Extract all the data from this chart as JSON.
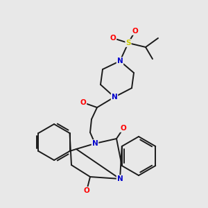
{
  "background_color": "#e8e8e8",
  "bond_color": "#1a1a1a",
  "atom_colors": {
    "N": "#0000cc",
    "O": "#ff0000",
    "S": "#cccc00",
    "C": "#1a1a1a"
  },
  "figsize": [
    3.0,
    3.0
  ],
  "dpi": 100
}
